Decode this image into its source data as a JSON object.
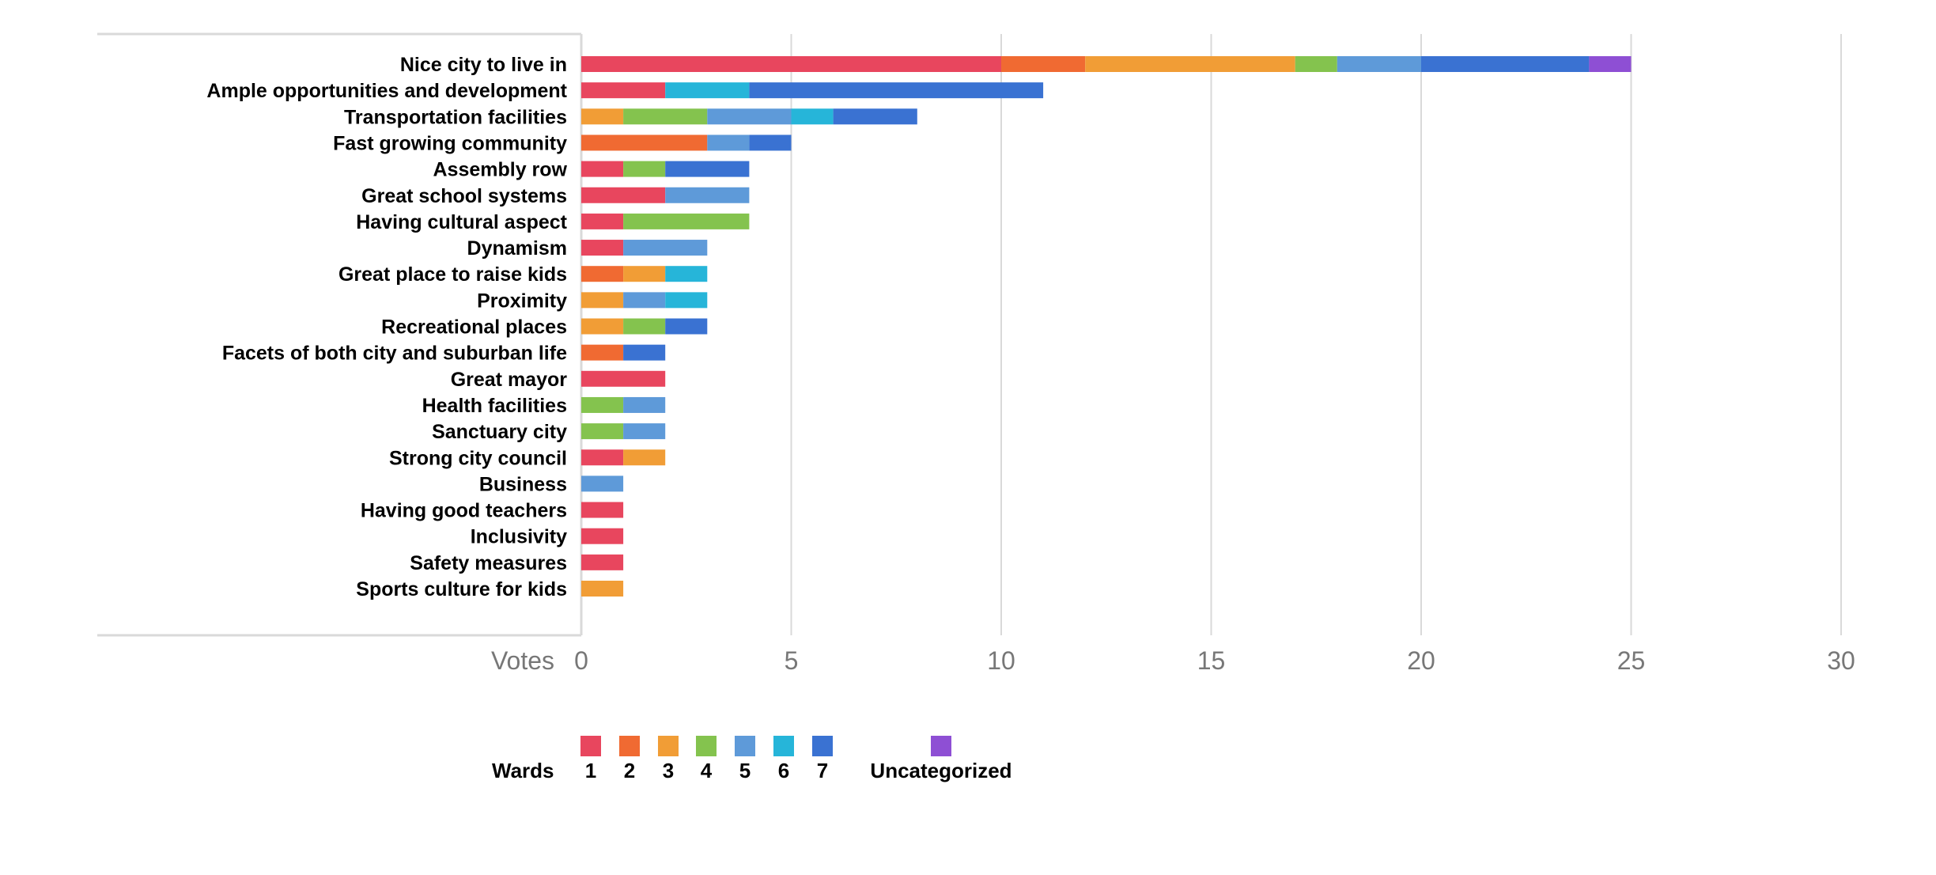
{
  "chart_data": {
    "type": "bar",
    "orientation": "horizontal",
    "stacked": true,
    "xlabel": "Votes",
    "xlim": [
      0,
      30
    ],
    "xticks": [
      "0",
      "5",
      "10",
      "15",
      "20",
      "25",
      "30"
    ],
    "grid": true,
    "legend_position": "bottom",
    "legend_title": "Wards",
    "categories": [
      "Nice city to live in",
      "Ample opportunities and development",
      "Transportation facilities",
      "Fast growing community",
      "Assembly row",
      "Great school systems",
      "Having cultural aspect",
      "Dynamism",
      "Great place to raise kids",
      "Proximity",
      "Recreational places",
      "Facets of both city and suburban life",
      "Great mayor",
      "Health facilities",
      "Sanctuary city",
      "Strong city council",
      "Business",
      "Having good teachers",
      "Inclusivity",
      "Safety measures",
      "Sports culture for kids"
    ],
    "series": [
      {
        "name": "1",
        "color": "#e8465e",
        "values": [
          10,
          2,
          0,
          0,
          1,
          2,
          1,
          1,
          0,
          0,
          0,
          0,
          2,
          0,
          0,
          1,
          0,
          1,
          1,
          1,
          0
        ]
      },
      {
        "name": "2",
        "color": "#f06a32",
        "values": [
          2,
          0,
          0,
          3,
          0,
          0,
          0,
          0,
          1,
          0,
          0,
          1,
          0,
          0,
          0,
          0,
          0,
          0,
          0,
          0,
          0
        ]
      },
      {
        "name": "3",
        "color": "#f19d36",
        "values": [
          5,
          0,
          1,
          0,
          0,
          0,
          0,
          0,
          1,
          1,
          1,
          0,
          0,
          0,
          0,
          1,
          0,
          0,
          0,
          0,
          1
        ]
      },
      {
        "name": "4",
        "color": "#84c34e",
        "values": [
          1,
          0,
          2,
          0,
          1,
          0,
          3,
          0,
          0,
          0,
          1,
          0,
          0,
          1,
          1,
          0,
          0,
          0,
          0,
          0,
          0
        ]
      },
      {
        "name": "5",
        "color": "#5e9ad9",
        "values": [
          2,
          0,
          2,
          1,
          0,
          2,
          0,
          2,
          0,
          1,
          0,
          0,
          0,
          1,
          1,
          0,
          1,
          0,
          0,
          0,
          0
        ]
      },
      {
        "name": "6",
        "color": "#26b5d9",
        "values": [
          0,
          2,
          1,
          0,
          0,
          0,
          0,
          0,
          1,
          1,
          0,
          0,
          0,
          0,
          0,
          0,
          0,
          0,
          0,
          0,
          0
        ]
      },
      {
        "name": "7",
        "color": "#3a72d2",
        "values": [
          4,
          7,
          2,
          1,
          2,
          0,
          0,
          0,
          0,
          0,
          1,
          1,
          0,
          0,
          0,
          0,
          0,
          0,
          0,
          0,
          0
        ]
      },
      {
        "name": "Uncategorized",
        "color": "#8e4fd4",
        "values": [
          1,
          0,
          0,
          0,
          0,
          0,
          0,
          0,
          0,
          0,
          0,
          0,
          0,
          0,
          0,
          0,
          0,
          0,
          0,
          0,
          0
        ]
      }
    ]
  }
}
